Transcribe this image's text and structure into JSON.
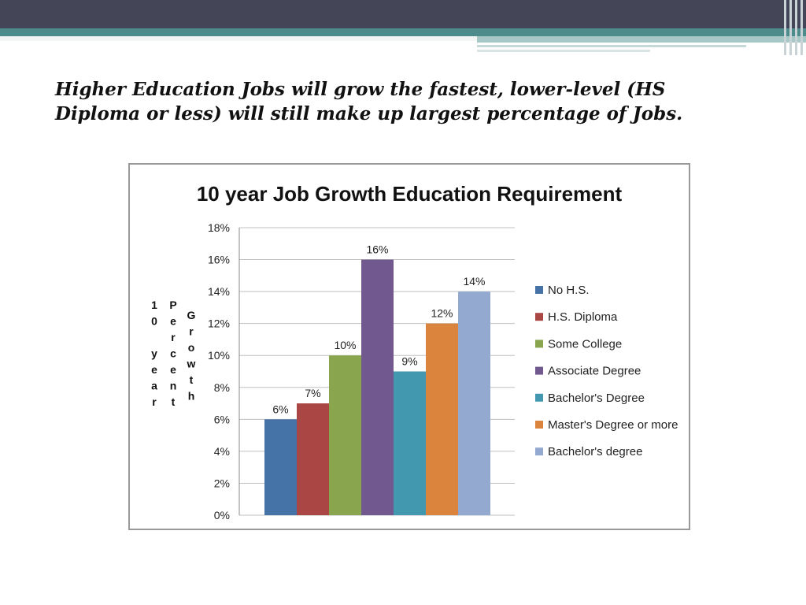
{
  "slide": {
    "headline": "Higher Education Jobs will grow the fastest, lower-level (HS Diploma or less) will still make up largest percentage of Jobs."
  },
  "chart_data": {
    "type": "bar",
    "title": "10 year Job Growth Education Requirement",
    "ylabel": "10 year Percent Growth",
    "ylabel_columns": [
      "10 year",
      "Percent",
      "Growth"
    ],
    "xlabel": "",
    "ylim": [
      0,
      18
    ],
    "yticks": [
      "0%",
      "2%",
      "4%",
      "6%",
      "8%",
      "10%",
      "12%",
      "14%",
      "16%",
      "18%"
    ],
    "grid": true,
    "legend_position": "right",
    "series": [
      {
        "name": "No H.S.",
        "value": 6,
        "label": "6%",
        "color": "#4572a7"
      },
      {
        "name": "H.S. Diploma",
        "value": 7,
        "label": "7%",
        "color": "#aa4643"
      },
      {
        "name": "Some College",
        "value": 10,
        "label": "10%",
        "color": "#89a54e"
      },
      {
        "name": "Associate Degree",
        "value": 16,
        "label": "16%",
        "color": "#71588f"
      },
      {
        "name": "Bachelor's Degree",
        "value": 9,
        "label": "9%",
        "color": "#4198af"
      },
      {
        "name": "Master's Degree or more",
        "value": 12,
        "label": "12%",
        "color": "#db843d"
      },
      {
        "name": "Bachelor's degree",
        "value": 14,
        "label": "14%",
        "color": "#93a9cf"
      }
    ]
  }
}
